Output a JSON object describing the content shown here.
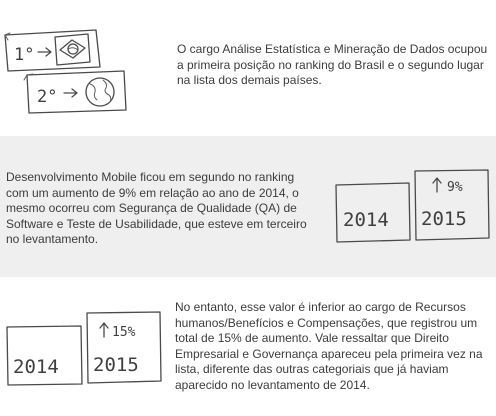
{
  "sections": [
    {
      "text": "O cargo Análise Estatística e Mineração de Dados ocupou a primeira posição no ranking do Brasil e o segundo lugar na lista dos demais países.",
      "illustration": {
        "rank_1_label": "1°",
        "rank_2_label": "2°",
        "icons": [
          "arrow-icon",
          "brazil-flag-icon",
          "arrow-icon",
          "globe-icon"
        ]
      }
    },
    {
      "text": "Desenvolvimento Mobile ficou em segundo no ranking com um aumento de 9% em relação ao ano de 2014, o mesmo ocorreu com Segurança de Qualidade (QA) de Software e Teste de Usabilidade, que esteve em terceiro no levantamento.",
      "illustration": {
        "year_before": "2014",
        "year_after": "2015",
        "increase": "9%"
      }
    },
    {
      "text": "No entanto, esse valor é inferior ao cargo de Recursos humanos/Benefícios e Compensações, que registrou um total de 15% de aumento. Vale ressaltar que Direito Empresarial e Governança apareceu pela primeira vez na lista, diferente das outras categoriais que já haviam aparecido no levantamento de 2014.",
      "illustration": {
        "year_before": "2014",
        "year_after": "2015",
        "increase": "15%"
      }
    }
  ]
}
